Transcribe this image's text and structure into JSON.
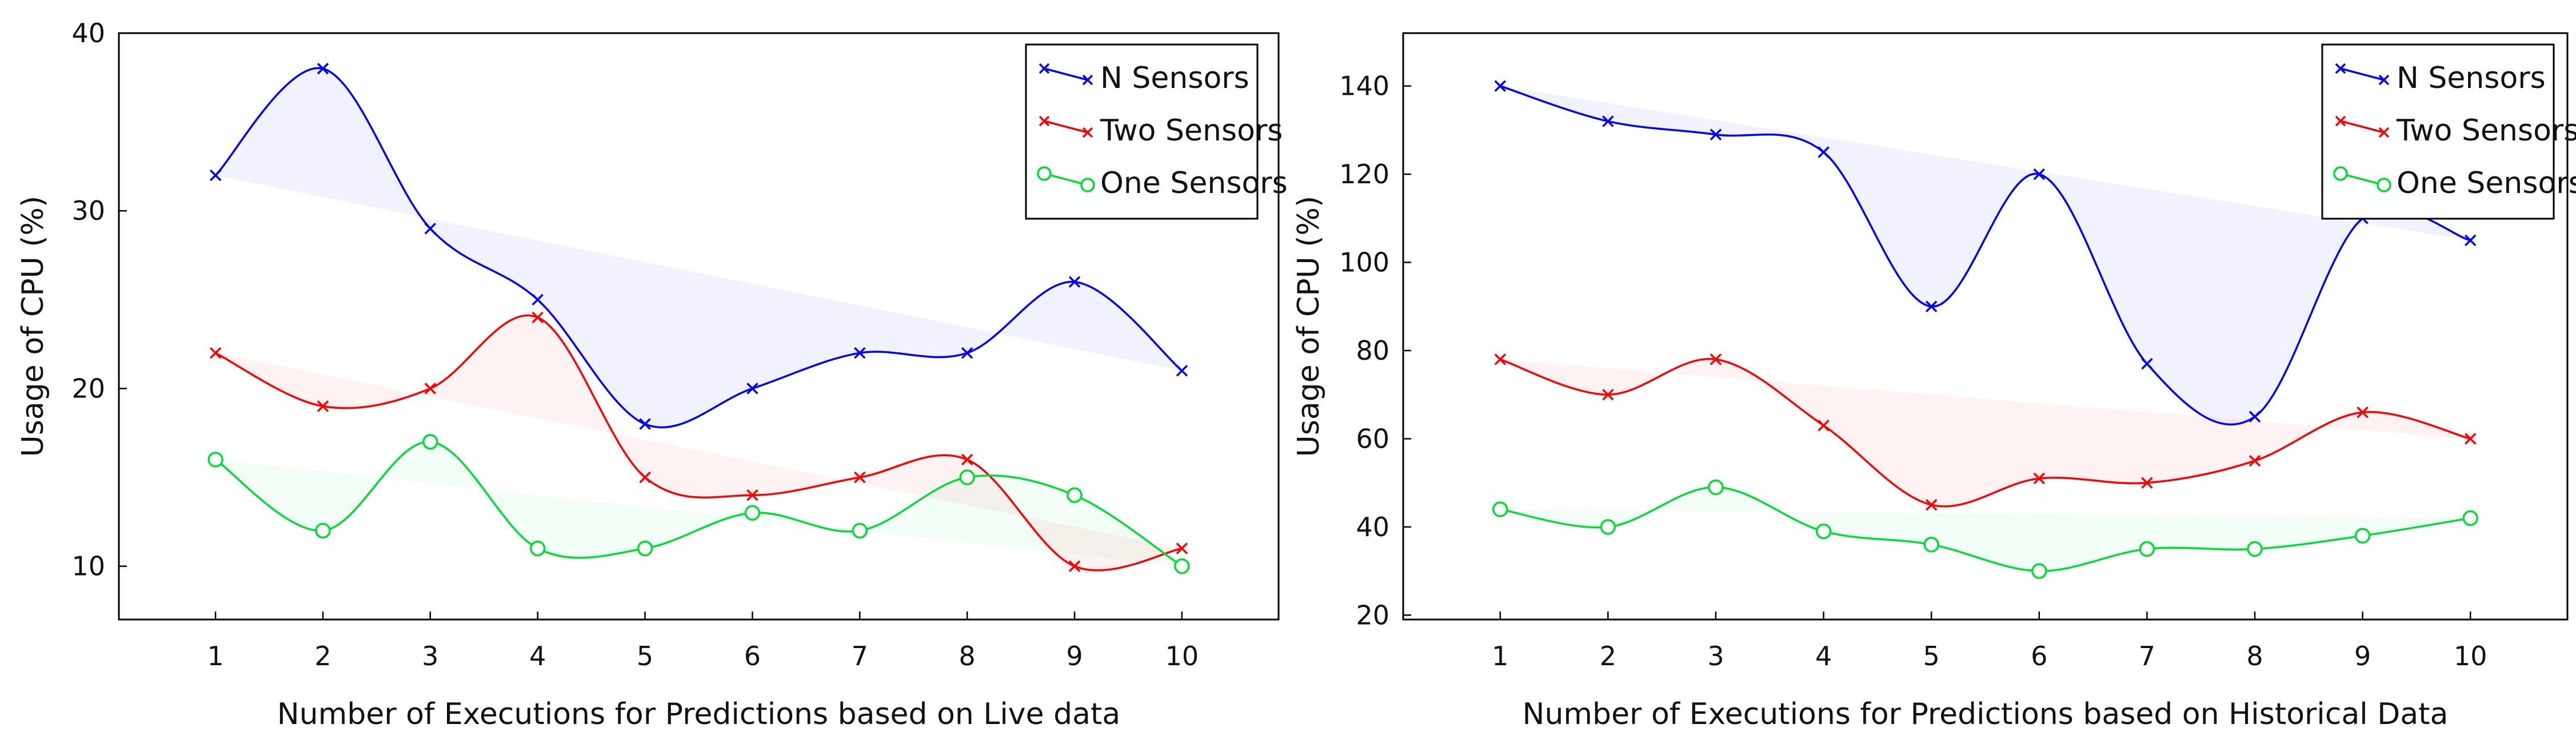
{
  "chart_data": [
    {
      "type": "line",
      "title": "",
      "xlabel": "Number of Executions for Predictions based on Live data",
      "ylabel": "Usage of CPU (%)",
      "x": [
        1,
        2,
        3,
        4,
        5,
        6,
        7,
        8,
        9,
        10
      ],
      "xlim": [
        0.1,
        10.9
      ],
      "ylim": [
        7,
        40
      ],
      "yticks": [
        10,
        20,
        30,
        40
      ],
      "legend_position": "top-right",
      "grid": false,
      "series": [
        {
          "name": "N Sensors",
          "color": "#0000ff",
          "marker": "x",
          "values": [
            32,
            38,
            29,
            25,
            18,
            20,
            22,
            22,
            26,
            21
          ]
        },
        {
          "name": "Two Sensors",
          "color": "#ff0000",
          "marker": "x",
          "values": [
            22,
            19,
            20,
            24,
            15,
            14,
            15,
            16,
            10,
            11
          ]
        },
        {
          "name": "One Sensors",
          "color": "#00dd33",
          "marker": "o",
          "values": [
            16,
            12,
            17,
            11,
            11,
            13,
            12,
            15,
            14,
            10
          ]
        }
      ]
    },
    {
      "type": "line",
      "title": "",
      "xlabel": "Number of Executions for Predictions based on Historical Data",
      "ylabel": "Usage of CPU (%)",
      "x": [
        1,
        2,
        3,
        4,
        5,
        6,
        7,
        8,
        9,
        10
      ],
      "xlim": [
        0.1,
        10.9
      ],
      "ylim": [
        19,
        152
      ],
      "yticks": [
        20,
        40,
        60,
        80,
        100,
        120,
        140
      ],
      "legend_position": "top-right",
      "grid": false,
      "series": [
        {
          "name": "N Sensors",
          "color": "#0000ff",
          "marker": "x",
          "values": [
            140,
            132,
            129,
            125,
            90,
            120,
            77,
            65,
            110,
            105
          ]
        },
        {
          "name": "Two Sensors",
          "color": "#ff0000",
          "marker": "x",
          "values": [
            78,
            70,
            78,
            63,
            45,
            51,
            50,
            55,
            66,
            60
          ]
        },
        {
          "name": "One Sensors",
          "color": "#00dd33",
          "marker": "o",
          "values": [
            44,
            40,
            49,
            39,
            36,
            30,
            35,
            35,
            38,
            42
          ]
        }
      ]
    }
  ]
}
